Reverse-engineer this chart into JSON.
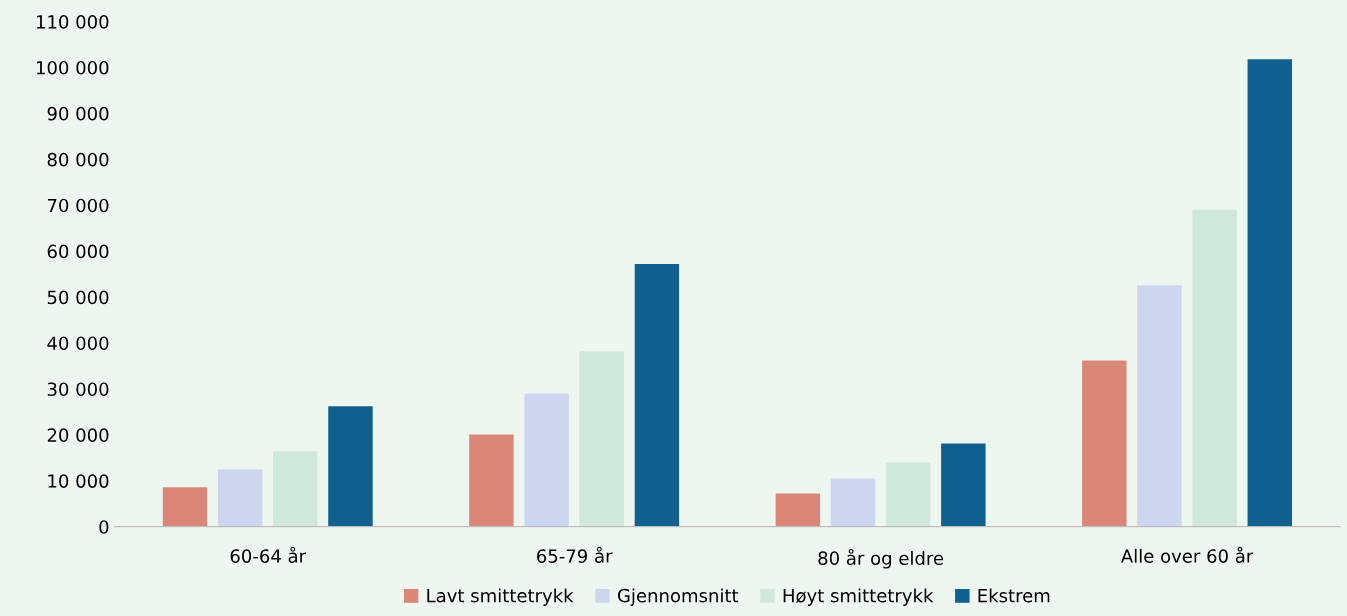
{
  "chart_data": {
    "type": "bar",
    "categories": [
      "60-64 år",
      "65-79 år",
      "80 år og eldre",
      "Alle over 60 år"
    ],
    "series": [
      {
        "name": "Lavt smittetrykk",
        "color": "#d98877",
        "values": [
          8600,
          20100,
          7200,
          36200
        ]
      },
      {
        "name": "Gjennomsnitt",
        "color": "#cdd6ee",
        "values": [
          12500,
          29000,
          10500,
          52600
        ]
      },
      {
        "name": "Høyt smittetrykk",
        "color": "#cfe7dc",
        "values": [
          16400,
          38200,
          14000,
          69000
        ]
      },
      {
        "name": "Ekstrem",
        "color": "#0f5f8f",
        "values": [
          26200,
          57200,
          18100,
          101800
        ]
      }
    ],
    "ylim": [
      0,
      110000
    ],
    "yticks": [
      0,
      {
        "value": 10000,
        "label": "10 000"
      },
      {
        "value": 20000,
        "label": "20 000"
      },
      {
        "value": 30000,
        "label": "30 000"
      },
      {
        "value": 40000,
        "label": "40 000"
      },
      {
        "value": 50000,
        "label": "50 000"
      },
      {
        "value": 60000,
        "label": "60 000"
      },
      {
        "value": 70000,
        "label": "70 000"
      },
      {
        "value": 80000,
        "label": "80 000"
      },
      {
        "value": 90000,
        "label": "90 000"
      },
      {
        "value": 100000,
        "label": "100 000"
      },
      {
        "value": 110000,
        "label": "110 000"
      }
    ],
    "grid": false,
    "legend": "bottom"
  }
}
